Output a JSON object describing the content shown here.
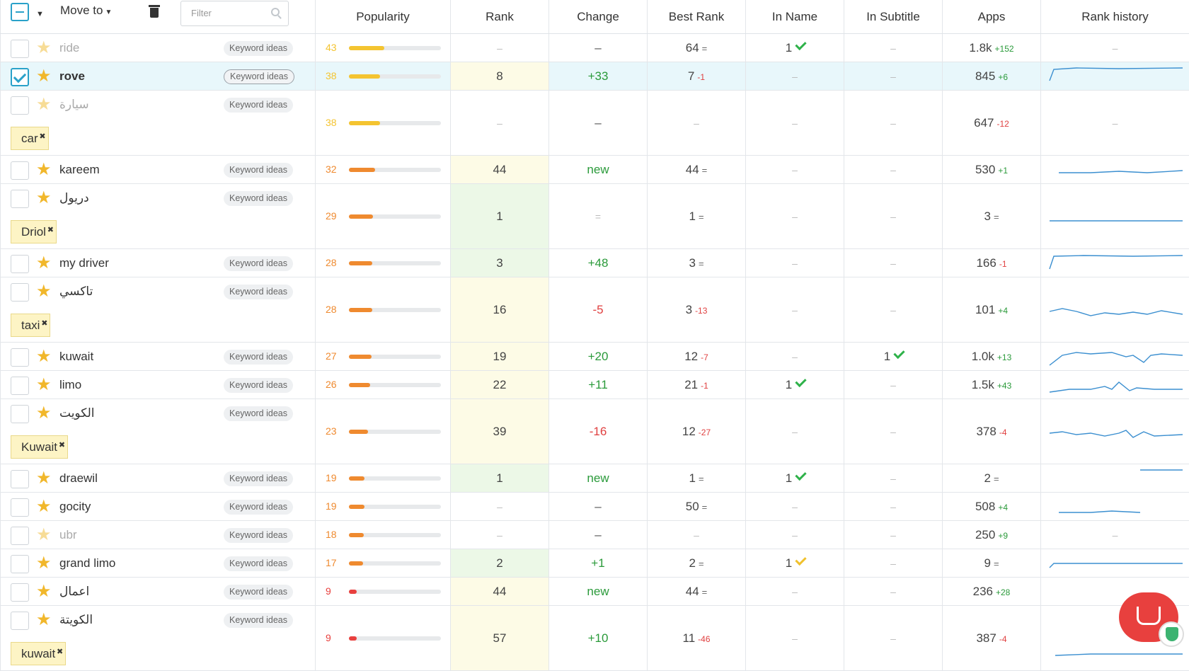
{
  "header": {
    "move_to": "Move to",
    "filter_placeholder": "Filter",
    "columns": [
      "Popularity",
      "Rank",
      "Change",
      "Best Rank",
      "In Name",
      "In Subtitle",
      "Apps",
      "Rank history"
    ]
  },
  "keyword_ideas_label": "Keyword ideas",
  "colors": {
    "accent": "#2aa1c9",
    "star": "#f1b72b",
    "pop_yellow": "#f4c430",
    "pop_orange": "#ef8a2f",
    "pop_red": "#e8403e"
  },
  "rows": [
    {
      "keyword": "ride",
      "faded": true,
      "pop": "43",
      "pop_pct": 43,
      "rank": "–",
      "change": "–",
      "best": "64",
      "best_delta": "=",
      "in_name": "1",
      "in_sub": "–",
      "apps": "1.8k",
      "apps_delta": "+152"
    },
    {
      "keyword": "rove",
      "selected": true,
      "pop": "38",
      "pop_pct": 38,
      "rank": "8",
      "change": "+33",
      "best": "7",
      "best_delta": "-1",
      "in_name": "–",
      "in_sub": "–",
      "apps": "845",
      "apps_delta": "+6"
    },
    {
      "keyword": "سيارة",
      "faded": true,
      "tag": "car",
      "pop": "38",
      "pop_pct": 38,
      "rank": "–",
      "change": "–",
      "best": "–",
      "in_name": "–",
      "in_sub": "–",
      "apps": "647",
      "apps_delta": "-12"
    },
    {
      "keyword": "kareem",
      "pop": "32",
      "pop_pct": 32,
      "rank": "44",
      "change": "new",
      "best": "44",
      "best_delta": "=",
      "in_name": "–",
      "in_sub": "–",
      "apps": "530",
      "apps_delta": "+1"
    },
    {
      "keyword": "دريول",
      "tag": "Driol",
      "pop": "29",
      "pop_pct": 29,
      "rank": "1",
      "change": "=",
      "best": "1",
      "best_delta": "=",
      "in_name": "–",
      "in_sub": "–",
      "apps": "3",
      "apps_delta": "="
    },
    {
      "keyword": "my driver",
      "pop": "28",
      "pop_pct": 28,
      "rank": "3",
      "change": "+48",
      "best": "3",
      "best_delta": "=",
      "in_name": "–",
      "in_sub": "–",
      "apps": "166",
      "apps_delta": "-1"
    },
    {
      "keyword": "تاكسي",
      "tag": "taxi",
      "pop": "28",
      "pop_pct": 28,
      "rank": "16",
      "change": "-5",
      "best": "3",
      "best_delta": "-13",
      "in_name": "–",
      "in_sub": "–",
      "apps": "101",
      "apps_delta": "+4"
    },
    {
      "keyword": "kuwait",
      "pop": "27",
      "pop_pct": 27,
      "rank": "19",
      "change": "+20",
      "best": "12",
      "best_delta": "-7",
      "in_name": "–",
      "in_sub": "1",
      "apps": "1.0k",
      "apps_delta": "+13"
    },
    {
      "keyword": "limo",
      "pop": "26",
      "pop_pct": 26,
      "rank": "22",
      "change": "+11",
      "best": "21",
      "best_delta": "-1",
      "in_name": "1",
      "in_sub": "–",
      "apps": "1.5k",
      "apps_delta": "+43"
    },
    {
      "keyword": "الكويت",
      "tag": "Kuwait",
      "pop": "23",
      "pop_pct": 23,
      "rank": "39",
      "change": "-16",
      "best": "12",
      "best_delta": "-27",
      "in_name": "–",
      "in_sub": "–",
      "apps": "378",
      "apps_delta": "-4"
    },
    {
      "keyword": "draewil",
      "pop": "19",
      "pop_pct": 19,
      "rank": "1",
      "change": "new",
      "best": "1",
      "best_delta": "=",
      "in_name": "1",
      "in_sub": "–",
      "apps": "2",
      "apps_delta": "="
    },
    {
      "keyword": "gocity",
      "pop": "19",
      "pop_pct": 19,
      "rank": "–",
      "change": "–",
      "best": "50",
      "best_delta": "=",
      "in_name": "–",
      "in_sub": "–",
      "apps": "508",
      "apps_delta": "+4"
    },
    {
      "keyword": "ubr",
      "faded": true,
      "pop": "18",
      "pop_pct": 18,
      "rank": "–",
      "change": "–",
      "best": "–",
      "in_name": "–",
      "in_sub": "–",
      "apps": "250",
      "apps_delta": "+9"
    },
    {
      "keyword": "grand limo",
      "pop": "17",
      "pop_pct": 17,
      "rank": "2",
      "change": "+1",
      "best": "2",
      "best_delta": "=",
      "in_name": "1",
      "in_sub": "–",
      "apps": "9",
      "apps_delta": "="
    },
    {
      "keyword": "اعمال",
      "pop": "9",
      "pop_pct": 9,
      "rank": "44",
      "change": "new",
      "best": "44",
      "best_delta": "=",
      "in_name": "–",
      "in_sub": "–",
      "apps": "236",
      "apps_delta": "+28"
    },
    {
      "keyword": "الكويتة",
      "tag": "kuwait",
      "pop": "9",
      "pop_pct": 9,
      "rank": "57",
      "change": "+10",
      "best": "11",
      "best_delta": "-46",
      "in_name": "–",
      "in_sub": "–",
      "apps": "387",
      "apps_delta": "-4"
    }
  ]
}
